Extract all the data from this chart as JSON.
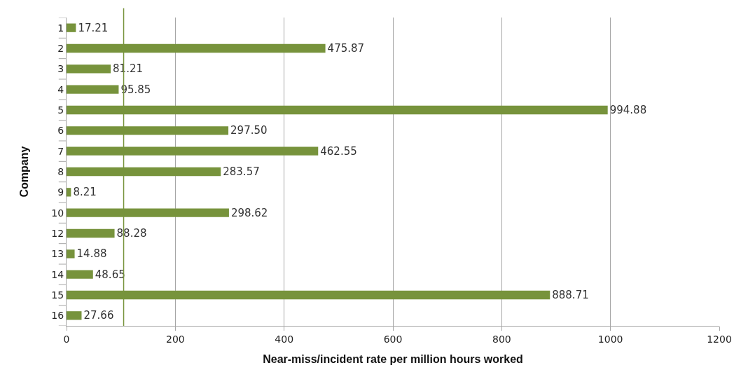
{
  "chart_data": {
    "type": "bar",
    "orientation": "horizontal",
    "xlabel": "Near-miss/incident rate per million hours worked",
    "ylabel": "Company",
    "categories": [
      "1",
      "2",
      "3",
      "4",
      "5",
      "6",
      "7",
      "8",
      "9",
      "10",
      "12",
      "13",
      "14",
      "15",
      "16"
    ],
    "values": [
      17.21,
      475.87,
      81.21,
      95.85,
      994.88,
      297.5,
      462.55,
      283.57,
      8.21,
      298.62,
      88.28,
      14.88,
      48.65,
      888.71,
      27.66
    ],
    "value_labels": [
      "17.21",
      "475.87",
      "81.21",
      "95.85",
      "994.88",
      "297.50",
      "462.55",
      "283.57",
      "8.21",
      "298.62",
      "88.28",
      "14.88",
      "48.65",
      "888.71",
      "27.66"
    ],
    "color": "#77933c",
    "xlim": [
      0,
      1200
    ],
    "xticks": [
      0,
      200,
      400,
      600,
      800,
      1000,
      1200
    ],
    "grid": "x",
    "legend": false,
    "ref_lines": [
      {
        "axis": "x",
        "value": 105,
        "color": "#77933c"
      }
    ]
  }
}
